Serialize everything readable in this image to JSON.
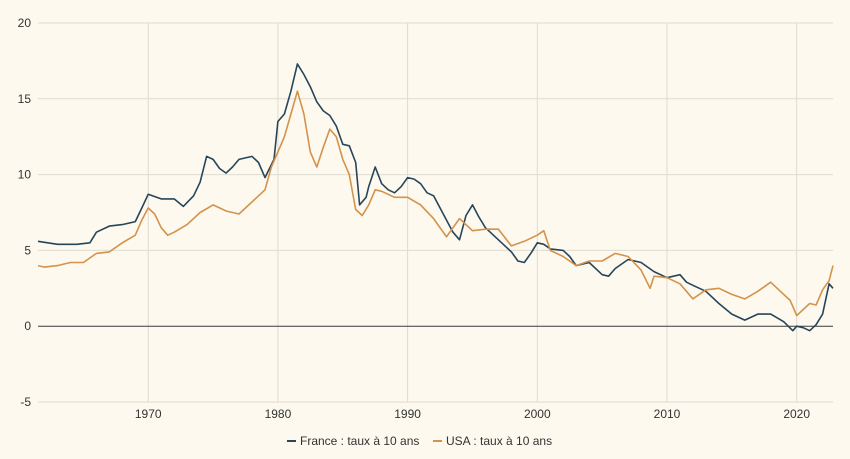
{
  "chart_data": {
    "type": "line",
    "title": "",
    "xlabel": "",
    "ylabel": "",
    "xlim": [
      1961.5,
      2022.8
    ],
    "ylim": [
      -5,
      20
    ],
    "x_ticks": [
      1970,
      1980,
      1990,
      2000,
      2010,
      2020
    ],
    "y_ticks": [
      -5,
      0,
      5,
      10,
      15,
      20
    ],
    "grid": true,
    "legend_position": "bottom-center",
    "series": [
      {
        "name": "France : taux à 10 ans",
        "color": "#27465a",
        "points": [
          [
            1961.5,
            5.6
          ],
          [
            1963,
            5.4
          ],
          [
            1964.5,
            5.4
          ],
          [
            1965.5,
            5.5
          ],
          [
            1966,
            6.2
          ],
          [
            1967,
            6.6
          ],
          [
            1968,
            6.7
          ],
          [
            1969,
            6.9
          ],
          [
            1969.5,
            7.8
          ],
          [
            1970,
            8.7
          ],
          [
            1971,
            8.4
          ],
          [
            1972,
            8.4
          ],
          [
            1972.7,
            7.9
          ],
          [
            1973.5,
            8.6
          ],
          [
            1974,
            9.5
          ],
          [
            1974.5,
            11.2
          ],
          [
            1975,
            11.0
          ],
          [
            1975.5,
            10.4
          ],
          [
            1976,
            10.1
          ],
          [
            1976.5,
            10.5
          ],
          [
            1977,
            11.0
          ],
          [
            1978,
            11.2
          ],
          [
            1978.5,
            10.8
          ],
          [
            1979,
            9.8
          ],
          [
            1979.7,
            11.0
          ],
          [
            1980,
            13.5
          ],
          [
            1980.5,
            14.0
          ],
          [
            1981,
            15.5
          ],
          [
            1981.5,
            17.3
          ],
          [
            1982,
            16.6
          ],
          [
            1982.5,
            15.8
          ],
          [
            1983,
            14.8
          ],
          [
            1983.5,
            14.2
          ],
          [
            1984,
            13.9
          ],
          [
            1984.5,
            13.2
          ],
          [
            1985,
            12.0
          ],
          [
            1985.5,
            11.9
          ],
          [
            1986,
            10.8
          ],
          [
            1986.3,
            8.0
          ],
          [
            1986.8,
            8.5
          ],
          [
            1987,
            9.2
          ],
          [
            1987.5,
            10.5
          ],
          [
            1988,
            9.4
          ],
          [
            1988.5,
            9.0
          ],
          [
            1989,
            8.8
          ],
          [
            1989.5,
            9.2
          ],
          [
            1990,
            9.8
          ],
          [
            1990.5,
            9.7
          ],
          [
            1991,
            9.4
          ],
          [
            1991.5,
            8.8
          ],
          [
            1992,
            8.6
          ],
          [
            1993,
            7.0
          ],
          [
            1993.5,
            6.2
          ],
          [
            1994,
            5.7
          ],
          [
            1994.5,
            7.3
          ],
          [
            1995,
            8.0
          ],
          [
            1995.5,
            7.2
          ],
          [
            1996,
            6.5
          ],
          [
            1997,
            5.7
          ],
          [
            1998,
            4.9
          ],
          [
            1998.5,
            4.3
          ],
          [
            1999,
            4.2
          ],
          [
            1999.5,
            4.8
          ],
          [
            2000,
            5.5
          ],
          [
            2000.5,
            5.4
          ],
          [
            2001,
            5.1
          ],
          [
            2002,
            5.0
          ],
          [
            2002.5,
            4.6
          ],
          [
            2003,
            4.0
          ],
          [
            2004,
            4.2
          ],
          [
            2005,
            3.4
          ],
          [
            2005.5,
            3.3
          ],
          [
            2006,
            3.8
          ],
          [
            2007,
            4.4
          ],
          [
            2008,
            4.2
          ],
          [
            2009,
            3.6
          ],
          [
            2010,
            3.2
          ],
          [
            2011,
            3.4
          ],
          [
            2011.5,
            2.9
          ],
          [
            2012,
            2.7
          ],
          [
            2013,
            2.3
          ],
          [
            2014,
            1.5
          ],
          [
            2015,
            0.8
          ],
          [
            2016,
            0.4
          ],
          [
            2017,
            0.8
          ],
          [
            2018,
            0.8
          ],
          [
            2019,
            0.3
          ],
          [
            2019.7,
            -0.3
          ],
          [
            2020,
            0.0
          ],
          [
            2020.5,
            -0.1
          ],
          [
            2021,
            -0.3
          ],
          [
            2021.5,
            0.1
          ],
          [
            2022,
            0.8
          ],
          [
            2022.5,
            2.8
          ],
          [
            2022.8,
            2.5
          ]
        ]
      },
      {
        "name": "USA : taux à 10 ans",
        "color": "#d4924a",
        "points": [
          [
            1961.5,
            4.0
          ],
          [
            1962,
            3.9
          ],
          [
            1963,
            4.0
          ],
          [
            1964,
            4.2
          ],
          [
            1965,
            4.2
          ],
          [
            1966,
            4.8
          ],
          [
            1967,
            4.9
          ],
          [
            1968,
            5.5
          ],
          [
            1969,
            6.0
          ],
          [
            1969.5,
            7.0
          ],
          [
            1970,
            7.8
          ],
          [
            1970.5,
            7.4
          ],
          [
            1971,
            6.5
          ],
          [
            1971.5,
            6.0
          ],
          [
            1972,
            6.2
          ],
          [
            1973,
            6.7
          ],
          [
            1974,
            7.5
          ],
          [
            1975,
            8.0
          ],
          [
            1976,
            7.6
          ],
          [
            1977,
            7.4
          ],
          [
            1978,
            8.2
          ],
          [
            1979,
            9.0
          ],
          [
            1979.5,
            10.5
          ],
          [
            1980,
            11.5
          ],
          [
            1980.5,
            12.5
          ],
          [
            1981,
            14.0
          ],
          [
            1981.5,
            15.5
          ],
          [
            1982,
            14.0
          ],
          [
            1982.5,
            11.5
          ],
          [
            1983,
            10.5
          ],
          [
            1983.5,
            11.8
          ],
          [
            1984,
            13.0
          ],
          [
            1984.5,
            12.5
          ],
          [
            1985,
            11.0
          ],
          [
            1985.5,
            10.0
          ],
          [
            1986,
            7.7
          ],
          [
            1986.5,
            7.3
          ],
          [
            1987,
            8.0
          ],
          [
            1987.5,
            9.0
          ],
          [
            1988,
            8.9
          ],
          [
            1989,
            8.5
          ],
          [
            1990,
            8.5
          ],
          [
            1991,
            8.0
          ],
          [
            1992,
            7.1
          ],
          [
            1993,
            5.9
          ],
          [
            1994,
            7.1
          ],
          [
            1995,
            6.3
          ],
          [
            1996,
            6.4
          ],
          [
            1997,
            6.4
          ],
          [
            1998,
            5.3
          ],
          [
            1999,
            5.6
          ],
          [
            2000,
            6.0
          ],
          [
            2000.5,
            6.3
          ],
          [
            2001,
            5.0
          ],
          [
            2002,
            4.6
          ],
          [
            2003,
            4.0
          ],
          [
            2004,
            4.3
          ],
          [
            2005,
            4.3
          ],
          [
            2006,
            4.8
          ],
          [
            2007,
            4.6
          ],
          [
            2008,
            3.7
          ],
          [
            2008.7,
            2.5
          ],
          [
            2009,
            3.3
          ],
          [
            2010,
            3.2
          ],
          [
            2011,
            2.8
          ],
          [
            2012,
            1.8
          ],
          [
            2013,
            2.4
          ],
          [
            2014,
            2.5
          ],
          [
            2015,
            2.1
          ],
          [
            2016,
            1.8
          ],
          [
            2017,
            2.3
          ],
          [
            2018,
            2.9
          ],
          [
            2019,
            2.1
          ],
          [
            2019.5,
            1.7
          ],
          [
            2020,
            0.7
          ],
          [
            2021,
            1.5
          ],
          [
            2021.5,
            1.4
          ],
          [
            2022,
            2.4
          ],
          [
            2022.5,
            3.0
          ],
          [
            2022.8,
            4.0
          ]
        ]
      }
    ]
  }
}
